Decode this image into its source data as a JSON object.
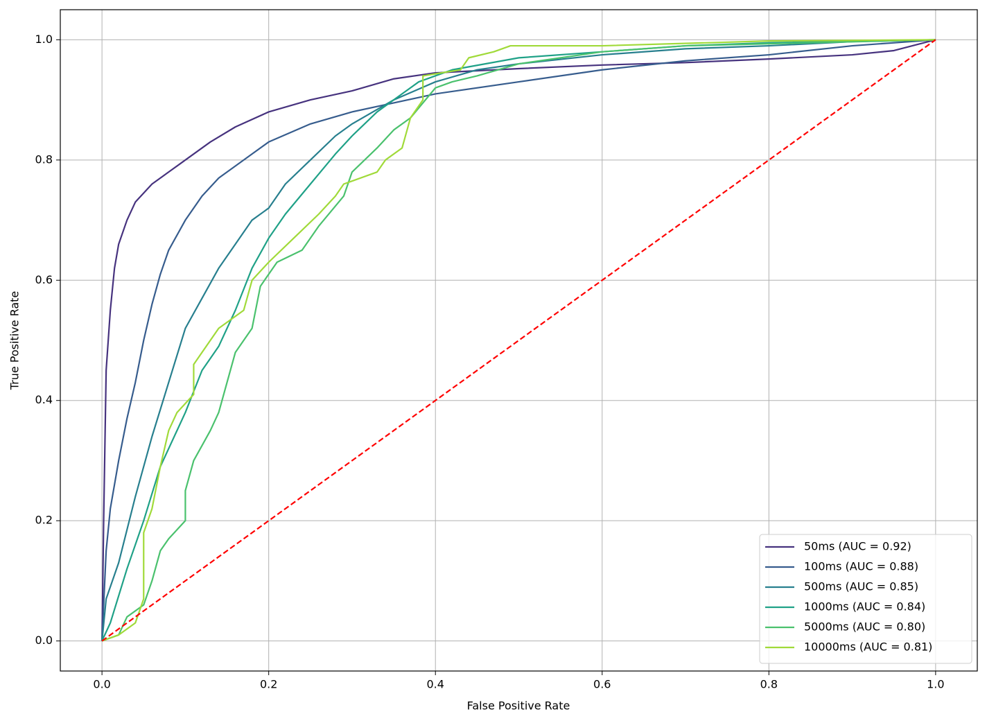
{
  "chart_data": {
    "type": "line",
    "xlabel": "False Positive Rate",
    "ylabel": "True Positive Rate",
    "xlim": [
      -0.05,
      1.05
    ],
    "ylim": [
      -0.05,
      1.05
    ],
    "xticks": [
      {
        "value": 0,
        "label": "0.0"
      },
      0.2,
      0.4,
      0.6,
      0.8,
      {
        "value": 1,
        "label": "1.0"
      }
    ],
    "yticks": [
      {
        "value": 0,
        "label": "0.0"
      },
      0.2,
      0.4,
      0.6,
      0.8,
      {
        "value": 1,
        "label": "1.0"
      }
    ],
    "grid": true,
    "legend": "lower right",
    "series": [
      {
        "name": "50ms (AUC = 0.92)",
        "color": "#46327e",
        "x": [
          0,
          0.002,
          0.005,
          0.01,
          0.015,
          0.02,
          0.03,
          0.04,
          0.06,
          0.08,
          0.1,
          0.13,
          0.16,
          0.2,
          0.25,
          0.3,
          0.35,
          0.4,
          0.5,
          0.6,
          0.7,
          0.8,
          0.9,
          0.95,
          1
        ],
        "values": [
          0,
          0.2,
          0.45,
          0.55,
          0.62,
          0.66,
          0.7,
          0.73,
          0.76,
          0.78,
          0.8,
          0.83,
          0.855,
          0.88,
          0.9,
          0.915,
          0.935,
          0.945,
          0.952,
          0.958,
          0.962,
          0.968,
          0.975,
          0.982,
          1
        ]
      },
      {
        "name": "100ms (AUC = 0.88)",
        "color": "#365c8d",
        "x": [
          0,
          0.005,
          0.01,
          0.02,
          0.03,
          0.04,
          0.05,
          0.06,
          0.07,
          0.08,
          0.1,
          0.12,
          0.14,
          0.16,
          0.18,
          0.2,
          0.25,
          0.3,
          0.35,
          0.4,
          0.5,
          0.6,
          0.7,
          0.8,
          0.9,
          1
        ],
        "values": [
          0,
          0.15,
          0.22,
          0.3,
          0.37,
          0.43,
          0.5,
          0.56,
          0.61,
          0.65,
          0.7,
          0.74,
          0.77,
          0.79,
          0.81,
          0.83,
          0.86,
          0.88,
          0.895,
          0.91,
          0.93,
          0.95,
          0.965,
          0.975,
          0.99,
          1
        ]
      },
      {
        "name": "500ms (AUC = 0.85)",
        "color": "#277f8e",
        "x": [
          0,
          0.005,
          0.02,
          0.04,
          0.06,
          0.08,
          0.1,
          0.12,
          0.14,
          0.16,
          0.18,
          0.2,
          0.22,
          0.25,
          0.28,
          0.3,
          0.35,
          0.4,
          0.45,
          0.5,
          0.6,
          0.7,
          0.8,
          0.9,
          1
        ],
        "values": [
          0,
          0.07,
          0.13,
          0.24,
          0.34,
          0.43,
          0.52,
          0.57,
          0.62,
          0.66,
          0.7,
          0.72,
          0.76,
          0.8,
          0.84,
          0.86,
          0.9,
          0.93,
          0.95,
          0.96,
          0.975,
          0.985,
          0.99,
          0.997,
          1
        ]
      },
      {
        "name": "1000ms (AUC = 0.84)",
        "color": "#1fa187",
        "x": [
          0,
          0.01,
          0.03,
          0.05,
          0.07,
          0.1,
          0.12,
          0.14,
          0.16,
          0.18,
          0.2,
          0.22,
          0.25,
          0.28,
          0.3,
          0.33,
          0.36,
          0.38,
          0.42,
          0.5,
          0.6,
          0.7,
          0.8,
          1
        ],
        "values": [
          0,
          0.03,
          0.12,
          0.2,
          0.29,
          0.38,
          0.45,
          0.49,
          0.55,
          0.62,
          0.67,
          0.71,
          0.76,
          0.81,
          0.84,
          0.88,
          0.91,
          0.93,
          0.95,
          0.97,
          0.98,
          0.99,
          0.995,
          1
        ]
      },
      {
        "name": "5000ms (AUC = 0.80)",
        "color": "#4ac16d",
        "x": [
          0,
          0.02,
          0.03,
          0.05,
          0.06,
          0.07,
          0.08,
          0.1,
          0.1,
          0.11,
          0.13,
          0.14,
          0.15,
          0.16,
          0.18,
          0.19,
          0.21,
          0.24,
          0.26,
          0.29,
          0.3,
          0.33,
          0.35,
          0.37,
          0.4,
          0.42,
          0.45,
          0.5,
          0.6,
          0.7,
          1
        ],
        "values": [
          0,
          0.01,
          0.04,
          0.06,
          0.1,
          0.15,
          0.17,
          0.2,
          0.25,
          0.3,
          0.35,
          0.38,
          0.43,
          0.48,
          0.52,
          0.59,
          0.63,
          0.65,
          0.69,
          0.74,
          0.78,
          0.82,
          0.85,
          0.87,
          0.92,
          0.93,
          0.94,
          0.96,
          0.98,
          0.99,
          1
        ]
      },
      {
        "name": "10000ms (AUC = 0.81)",
        "color": "#a0da39",
        "x": [
          0,
          0.02,
          0.04,
          0.05,
          0.05,
          0.06,
          0.07,
          0.08,
          0.09,
          0.11,
          0.11,
          0.14,
          0.17,
          0.18,
          0.2,
          0.23,
          0.26,
          0.28,
          0.29,
          0.33,
          0.34,
          0.36,
          0.37,
          0.385,
          0.385,
          0.43,
          0.44,
          0.47,
          0.49,
          0.6,
          0.8,
          1
        ],
        "values": [
          0,
          0.01,
          0.03,
          0.07,
          0.18,
          0.22,
          0.29,
          0.35,
          0.38,
          0.41,
          0.46,
          0.52,
          0.55,
          0.6,
          0.63,
          0.67,
          0.71,
          0.74,
          0.76,
          0.78,
          0.8,
          0.82,
          0.87,
          0.9,
          0.94,
          0.95,
          0.97,
          0.98,
          0.99,
          0.99,
          0.998,
          1
        ]
      }
    ],
    "reference_line": {
      "x": [
        0,
        1
      ],
      "values": [
        0,
        1
      ],
      "color": "#ff0000",
      "dashed": true
    }
  }
}
